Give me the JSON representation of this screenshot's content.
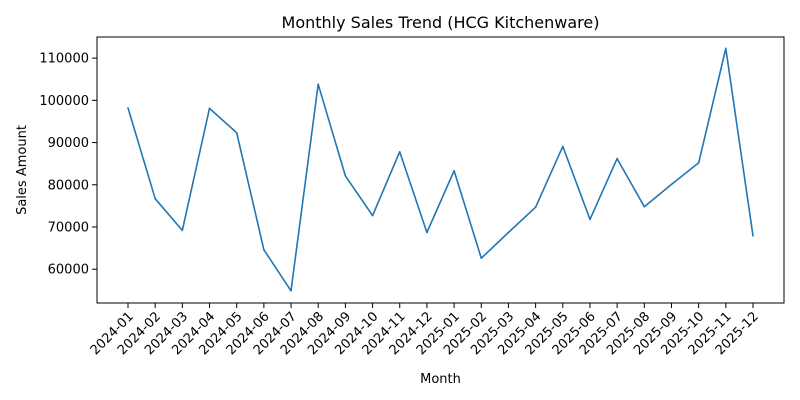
{
  "chart_data": {
    "type": "line",
    "title": "Monthly Sales Trend (HCG Kitchenware)",
    "xlabel": "Month",
    "ylabel": "Sales Amount",
    "categories": [
      "2024-01",
      "2024-02",
      "2024-03",
      "2024-04",
      "2024-05",
      "2024-06",
      "2024-07",
      "2024-08",
      "2024-09",
      "2024-10",
      "2024-11",
      "2024-12",
      "2025-01",
      "2025-02",
      "2025-03",
      "2025-04",
      "2025-05",
      "2025-06",
      "2025-07",
      "2025-08",
      "2025-09",
      "2025-10",
      "2025-11",
      "2025-12"
    ],
    "series": [
      {
        "values": [
          98200,
          76700,
          69200,
          98100,
          92300,
          64600,
          54900,
          103800,
          82100,
          72700,
          87800,
          68700,
          83300,
          62600,
          68700,
          74700,
          89100,
          71800,
          86200,
          74800,
          80100,
          85200,
          112300,
          67900
        ],
        "color": "#1f77b4"
      }
    ],
    "yticks": [
      "60000",
      "70000",
      "80000",
      "90000",
      "100000",
      "110000"
    ],
    "ylim": [
      52000,
      115000
    ],
    "grid": false,
    "legend": "none"
  }
}
